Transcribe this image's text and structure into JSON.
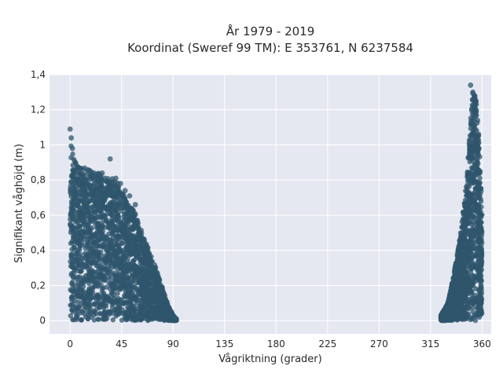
{
  "chart_data": {
    "type": "scatter",
    "title_line1": "År 1979 - 2019",
    "title_line2": "Koordinat (Sweref 99 TM): E 353761, N 6237584",
    "xlabel": "Vågriktning (grader)",
    "ylabel": "Signifikant våghöjd (m)",
    "xlim": [
      -18,
      368
    ],
    "ylim": [
      -0.075,
      1.4
    ],
    "xticks": [
      0,
      45,
      90,
      135,
      180,
      225,
      270,
      315,
      360
    ],
    "xtick_labels": [
      "0",
      "45",
      "90",
      "135",
      "180",
      "225",
      "270",
      "315",
      "360"
    ],
    "yticks": [
      0,
      0.2,
      0.4,
      0.6,
      0.8,
      1.0,
      1.2,
      1.4
    ],
    "ytick_labels": [
      "0",
      "0,2",
      "0,4",
      "0,6",
      "0,8",
      "1",
      "1,2",
      "1,4"
    ],
    "grid": true,
    "marker_color": "#2f566c",
    "plot_bg": "#e5e8f1",
    "clusters": [
      {
        "name": "",
        "envelope_x": [
          0,
          3,
          10,
          20,
          30,
          40,
          45,
          50,
          55,
          60,
          65,
          70,
          75,
          80,
          85,
          90,
          93
        ],
        "envelope_ymax": [
          1.09,
          0.92,
          0.88,
          0.85,
          0.83,
          0.8,
          0.75,
          0.66,
          0.65,
          0.55,
          0.47,
          0.38,
          0.3,
          0.2,
          0.1,
          0.03,
          0.01
        ],
        "ymin": 0.0
      },
      {
        "name": "",
        "envelope_x": [
          324,
          330,
          335,
          340,
          345,
          348,
          350,
          352,
          355,
          358,
          360
        ],
        "envelope_ymax": [
          0.03,
          0.1,
          0.25,
          0.45,
          0.7,
          0.95,
          1.15,
          1.34,
          1.25,
          0.95,
          0.6
        ],
        "ymin": 0.0
      }
    ],
    "outliers": [
      {
        "x": 0,
        "y": 1.09
      },
      {
        "x": 1,
        "y": 1.04
      },
      {
        "x": 2,
        "y": 0.98
      },
      {
        "x": 35,
        "y": 0.92
      },
      {
        "x": 28,
        "y": 0.84
      },
      {
        "x": 40,
        "y": 0.81
      },
      {
        "x": 44,
        "y": 0.78
      },
      {
        "x": 48,
        "y": 0.74
      },
      {
        "x": 52,
        "y": 0.71
      },
      {
        "x": 32,
        "y": 0.79
      },
      {
        "x": 57,
        "y": 0.66
      },
      {
        "x": 92,
        "y": 0.01
      },
      {
        "x": 350,
        "y": 1.34
      },
      {
        "x": 352,
        "y": 1.3
      },
      {
        "x": 354,
        "y": 1.19
      },
      {
        "x": 356,
        "y": 1.14
      },
      {
        "x": 357,
        "y": 1.06
      }
    ]
  }
}
